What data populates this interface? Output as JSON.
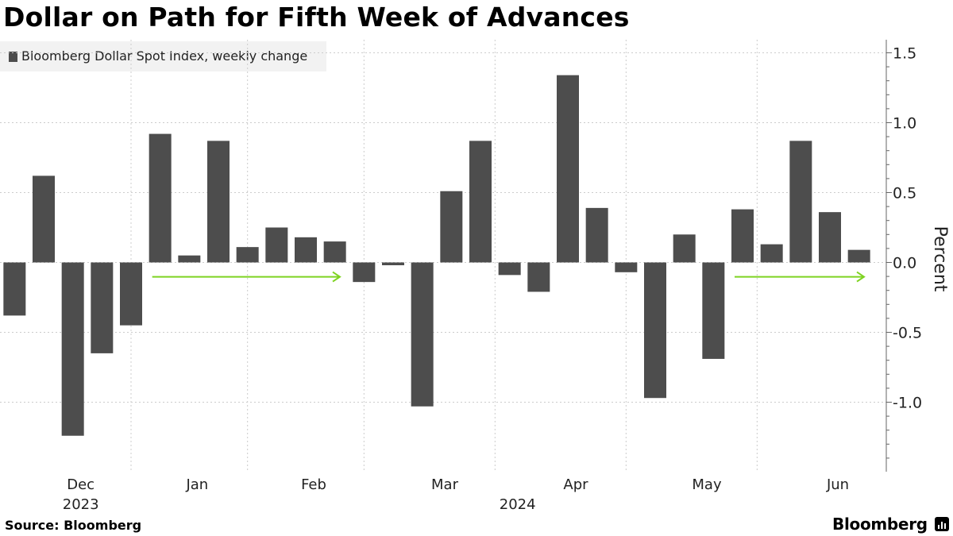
{
  "title": "Dollar on Path for Fifth Week of Advances",
  "legend_label": "Bloomberg Dollar Spot Index, weekly change",
  "source": "Source: Bloomberg",
  "brand": "Bloomberg",
  "colors": {
    "bar": "#4d4d4d",
    "arrow": "#7ed321",
    "grid": "#cccccc",
    "axis": "#666666"
  },
  "chart_data": {
    "type": "bar",
    "title": "Dollar on Path for Fifth Week of Advances",
    "series": [
      {
        "name": "Bloomberg Dollar Spot Index, weekly change",
        "values": [
          -0.38,
          0.62,
          -1.24,
          -0.65,
          -0.45,
          0.92,
          0.05,
          0.87,
          0.11,
          0.25,
          0.18,
          0.15,
          -0.14,
          -0.02,
          -1.03,
          0.51,
          0.87,
          -0.09,
          -0.21,
          1.34,
          0.39,
          -0.07,
          -0.97,
          0.2,
          -0.69,
          0.38,
          0.13,
          0.87,
          0.36,
          0.09
        ]
      }
    ],
    "ylabel": "Percent",
    "ylim": [
      -1.5,
      1.6
    ],
    "yticks": [
      1.5,
      1.0,
      0.5,
      0.0,
      -0.5,
      -1.0
    ],
    "ytick_labels": [
      "1.5",
      "1.0",
      "0.5",
      "0.0",
      "-0.5",
      "-1.0"
    ],
    "month_labels": [
      {
        "label": "Dec",
        "bar_index": 2.3
      },
      {
        "label": "Jan",
        "bar_index": 6.3
      },
      {
        "label": "Feb",
        "bar_index": 10.3
      },
      {
        "label": "Mar",
        "bar_index": 14.8
      },
      {
        "label": "Apr",
        "bar_index": 19.3
      },
      {
        "label": "May",
        "bar_index": 23.8
      },
      {
        "label": "Jun",
        "bar_index": 28.3
      }
    ],
    "year_labels": [
      {
        "label": "2023",
        "bar_index": 2.3
      },
      {
        "label": "2024",
        "bar_index": 17.3
      }
    ],
    "month_boundaries": [
      4.5,
      8.5,
      12.5,
      17,
      21.5,
      26
    ],
    "annotations": [
      {
        "type": "arrow",
        "from_bar_index": 5,
        "to_bar_index": 11.5,
        "y": -0.1
      },
      {
        "type": "arrow",
        "from_bar_index": 25,
        "to_bar_index": 29.5,
        "y": -0.1
      }
    ],
    "grid": true
  }
}
